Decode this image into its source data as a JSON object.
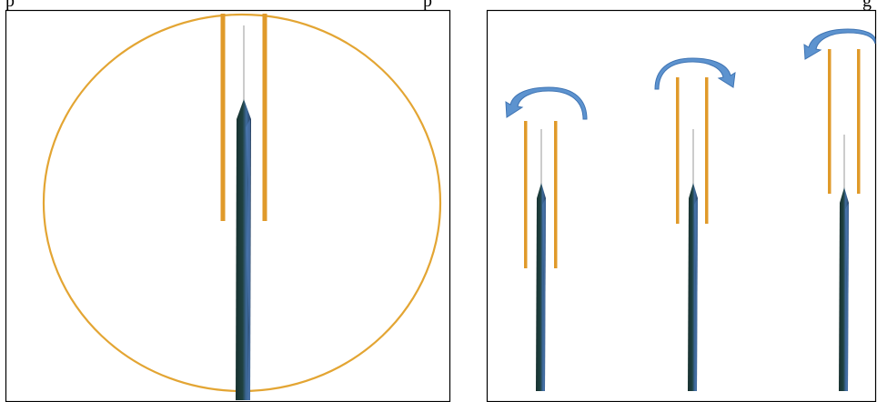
{
  "header_text": {
    "left": "p",
    "middle": "p",
    "right": "g"
  },
  "colors": {
    "frame": "#000000",
    "circle": "#E3A533",
    "rod": "#E09A2A",
    "needle_shaft": "#1C3B3B",
    "needle_highlight": "#4E7BB6",
    "needle_wire": "#9A9A9A",
    "arrow": "#5D93CF",
    "arrow_edge": "#3F74B3"
  },
  "icons": {
    "rotation_arrow": "curved-rotation-arrow-icon",
    "needle": "needle-icon"
  },
  "panels": {
    "left": {
      "name": "magnified-view-panel"
    },
    "right": {
      "name": "sequence-panel",
      "steps": [
        {
          "arrow_direction": "counterclockwise"
        },
        {
          "arrow_direction": "clockwise"
        },
        {
          "arrow_direction": "counterclockwise"
        }
      ]
    }
  }
}
